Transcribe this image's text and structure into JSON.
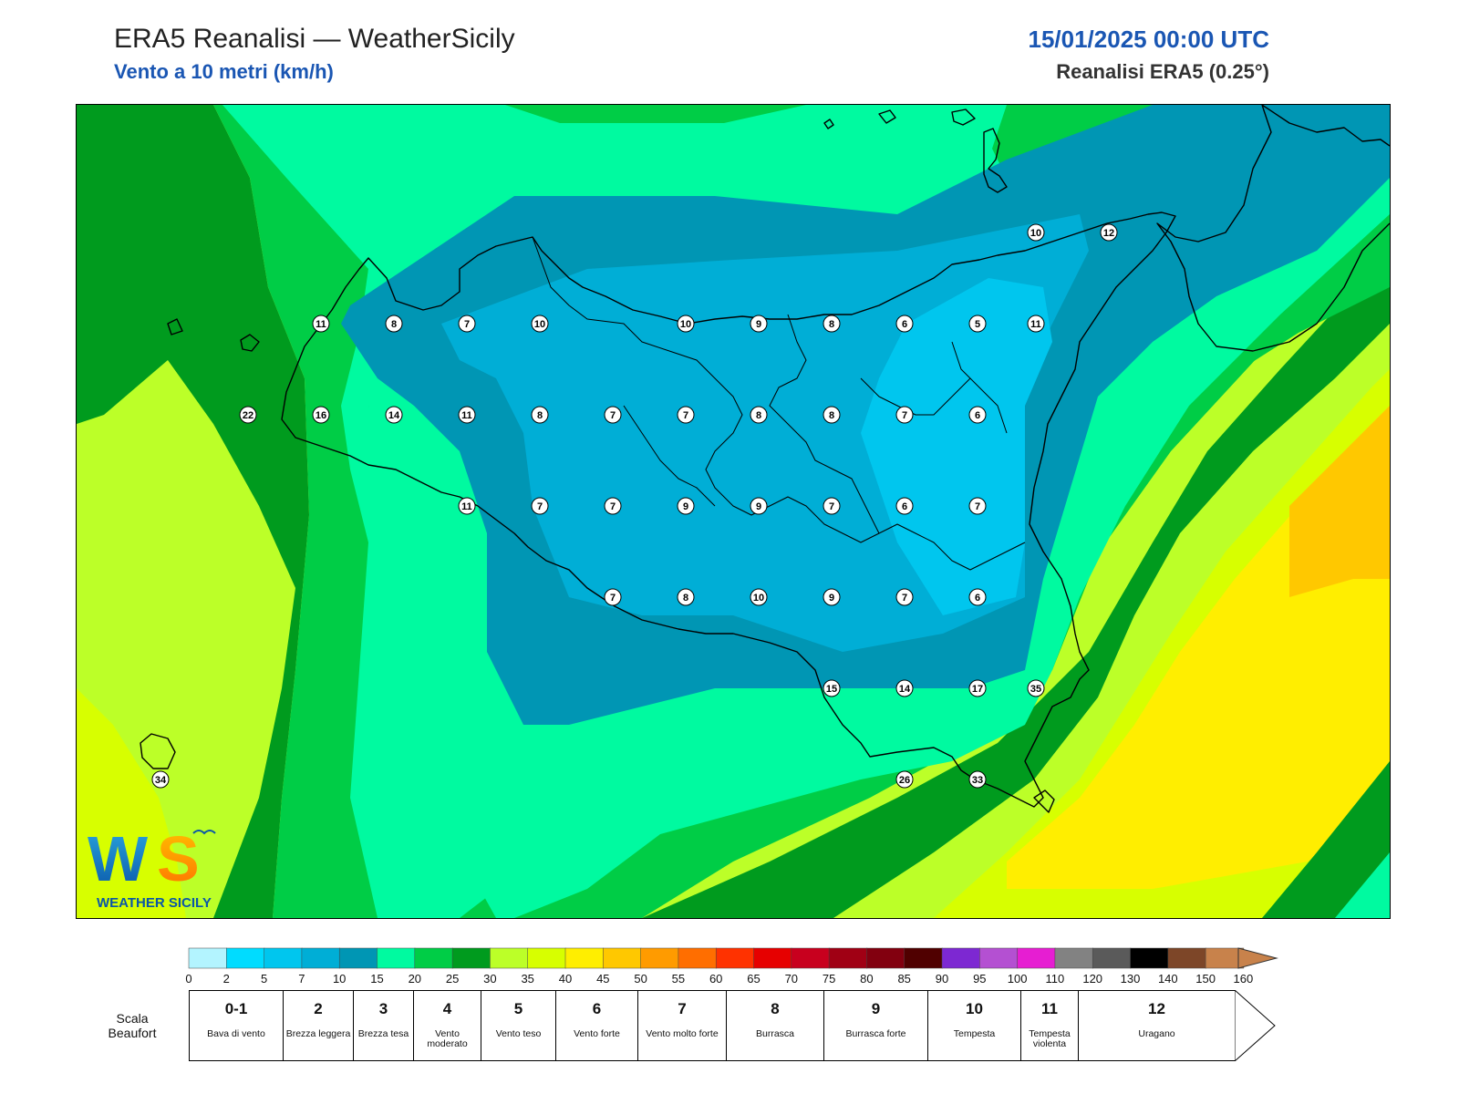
{
  "header": {
    "title": "ERA5 Reanalisi — WeatherSicily",
    "subtitle": "Vento a 10 metri (km/h)",
    "datetime": "15/01/2025 00:00 UTC",
    "resolution": "Reanalisi ERA5 (0.25°)"
  },
  "logo": {
    "letters": "WS",
    "text": "WEATHER SICILY"
  },
  "legend": {
    "ticks": [
      "0",
      "2",
      "5",
      "7",
      "10",
      "15",
      "20",
      "25",
      "30",
      "35",
      "40",
      "45",
      "50",
      "55",
      "60",
      "65",
      "70",
      "75",
      "80",
      "85",
      "90",
      "95",
      "100",
      "110",
      "120",
      "130",
      "140",
      "150",
      "160"
    ],
    "colors": [
      "#b3f4ff",
      "#00dcff",
      "#00c6ee",
      "#00aed6",
      "#0096b4",
      "#00faa0",
      "#00cd46",
      "#009b1e",
      "#bcff28",
      "#d7ff00",
      "#ffee00",
      "#ffc800",
      "#ff9b00",
      "#ff6e00",
      "#ff3200",
      "#e60000",
      "#c8001e",
      "#a00014",
      "#82000f",
      "#500000",
      "#7d28d2",
      "#b450d2",
      "#e61ed2",
      "#828282",
      "#5a5a5a",
      "#000000",
      "#7d4628",
      "#c8824b"
    ]
  },
  "beaufort": {
    "title_line1": "Scala",
    "title_line2": "Beaufort",
    "cells": [
      {
        "num": "0-1",
        "desc": "Bava di vento"
      },
      {
        "num": "2",
        "desc": "Brezza leggera"
      },
      {
        "num": "3",
        "desc": "Brezza tesa"
      },
      {
        "num": "4",
        "desc": "Vento moderato"
      },
      {
        "num": "5",
        "desc": "Vento teso"
      },
      {
        "num": "6",
        "desc": "Vento forte"
      },
      {
        "num": "7",
        "desc": "Vento molto forte"
      },
      {
        "num": "8",
        "desc": "Burrasca"
      },
      {
        "num": "9",
        "desc": "Burrasca forte"
      },
      {
        "num": "10",
        "desc": "Tempesta"
      },
      {
        "num": "11",
        "desc": "Tempesta violenta"
      },
      {
        "num": "12",
        "desc": "Uragano"
      }
    ]
  },
  "wind_labels": [
    {
      "v": "10",
      "lon": 14.95,
      "lat": 38.65
    },
    {
      "v": "12",
      "lon": 15.2,
      "lat": 38.65
    },
    {
      "v": "11",
      "lon": 12.5,
      "lat": 38.35
    },
    {
      "v": "8",
      "lon": 12.75,
      "lat": 38.35
    },
    {
      "v": "7",
      "lon": 13.0,
      "lat": 38.35
    },
    {
      "v": "10",
      "lon": 13.25,
      "lat": 38.35
    },
    {
      "v": "10",
      "lon": 13.75,
      "lat": 38.35
    },
    {
      "v": "9",
      "lon": 14.0,
      "lat": 38.35
    },
    {
      "v": "8",
      "lon": 14.25,
      "lat": 38.35
    },
    {
      "v": "6",
      "lon": 14.5,
      "lat": 38.35
    },
    {
      "v": "5",
      "lon": 14.75,
      "lat": 38.35
    },
    {
      "v": "11",
      "lon": 14.95,
      "lat": 38.35
    },
    {
      "v": "22",
      "lon": 12.25,
      "lat": 38.05
    },
    {
      "v": "16",
      "lon": 12.5,
      "lat": 38.05
    },
    {
      "v": "14",
      "lon": 12.75,
      "lat": 38.05
    },
    {
      "v": "11",
      "lon": 13.0,
      "lat": 38.05
    },
    {
      "v": "8",
      "lon": 13.25,
      "lat": 38.05
    },
    {
      "v": "7",
      "lon": 13.5,
      "lat": 38.05
    },
    {
      "v": "7",
      "lon": 13.75,
      "lat": 38.05
    },
    {
      "v": "8",
      "lon": 14.0,
      "lat": 38.05
    },
    {
      "v": "8",
      "lon": 14.25,
      "lat": 38.05
    },
    {
      "v": "7",
      "lon": 14.5,
      "lat": 38.05
    },
    {
      "v": "6",
      "lon": 14.75,
      "lat": 38.05
    },
    {
      "v": "11",
      "lon": 13.0,
      "lat": 37.75
    },
    {
      "v": "7",
      "lon": 13.25,
      "lat": 37.75
    },
    {
      "v": "7",
      "lon": 13.5,
      "lat": 37.75
    },
    {
      "v": "9",
      "lon": 13.75,
      "lat": 37.75
    },
    {
      "v": "9",
      "lon": 14.0,
      "lat": 37.75
    },
    {
      "v": "7",
      "lon": 14.25,
      "lat": 37.75
    },
    {
      "v": "6",
      "lon": 14.5,
      "lat": 37.75
    },
    {
      "v": "7",
      "lon": 14.75,
      "lat": 37.75
    },
    {
      "v": "7",
      "lon": 13.5,
      "lat": 37.45
    },
    {
      "v": "8",
      "lon": 13.75,
      "lat": 37.45
    },
    {
      "v": "10",
      "lon": 14.0,
      "lat": 37.45
    },
    {
      "v": "9",
      "lon": 14.25,
      "lat": 37.45
    },
    {
      "v": "7",
      "lon": 14.5,
      "lat": 37.45
    },
    {
      "v": "6",
      "lon": 14.75,
      "lat": 37.45
    },
    {
      "v": "15",
      "lon": 14.25,
      "lat": 37.15
    },
    {
      "v": "14",
      "lon": 14.5,
      "lat": 37.15
    },
    {
      "v": "17",
      "lon": 14.75,
      "lat": 37.15
    },
    {
      "v": "35",
      "lon": 14.95,
      "lat": 37.15
    },
    {
      "v": "26",
      "lon": 14.5,
      "lat": 36.85
    },
    {
      "v": "33",
      "lon": 14.75,
      "lat": 36.85
    },
    {
      "v": "34",
      "lon": 11.95,
      "lat": 36.85
    }
  ]
}
